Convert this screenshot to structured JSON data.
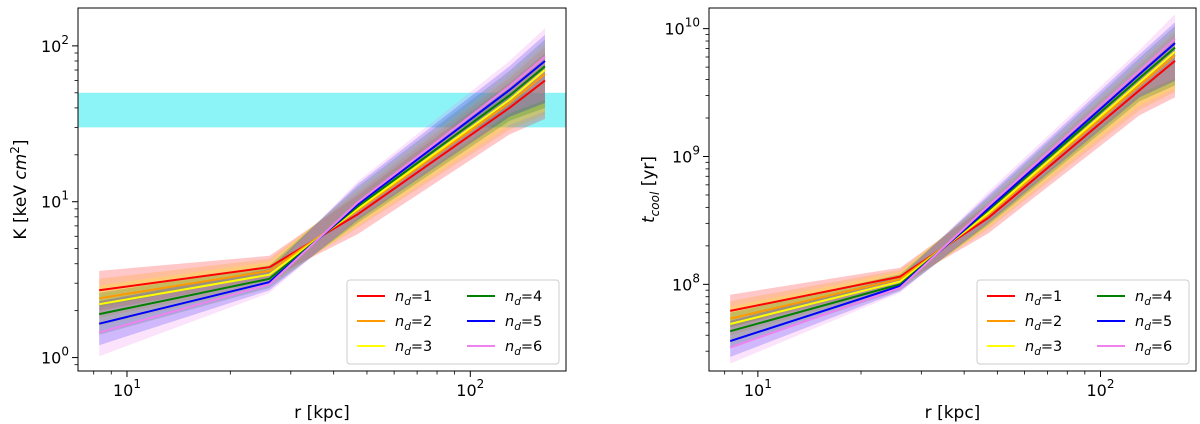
{
  "colors": {
    "nd1": "#ff0000",
    "nd2": "#ff9900",
    "nd3": "#ffff00",
    "nd4": "#008000",
    "nd5": "#0000ff",
    "nd6": "#ee82ee",
    "entropy_band": "#00e5ee"
  },
  "chart_data": [
    {
      "type": "line",
      "title": "",
      "xlabel": "r [kpc]",
      "ylabel": "K [keV cm²]",
      "ylabel_parts": {
        "main": "K [keV ",
        "italic": "cm",
        "sup": "2",
        "end": "]"
      },
      "xscale": "log",
      "yscale": "log",
      "xlim": [
        7.2,
        190
      ],
      "ylim": [
        0.82,
        175
      ],
      "xticks": [
        {
          "v": 10,
          "label": "10",
          "exp": "1"
        },
        {
          "v": 100,
          "label": "10",
          "exp": "2"
        }
      ],
      "yticks": [
        {
          "v": 1,
          "label": "10",
          "exp": "0"
        },
        {
          "v": 10,
          "label": "10",
          "exp": "1"
        },
        {
          "v": 100,
          "label": "10",
          "exp": "2"
        }
      ],
      "hband": [
        30,
        50
      ],
      "x": [
        8.3,
        26,
        47,
        130,
        165
      ],
      "series": [
        {
          "name": "n_d=1",
          "label_base": "n",
          "label_sub": "d",
          "label_val": "=1",
          "color_key": "nd1",
          "values": [
            2.7,
            3.8,
            8.3,
            40,
            60
          ],
          "lower": [
            2.0,
            3.2,
            6.2,
            27,
            34
          ],
          "upper": [
            3.6,
            4.5,
            11,
            58,
            90
          ]
        },
        {
          "name": "n_d=2",
          "label_base": "n",
          "label_sub": "d",
          "label_val": "=2",
          "color_key": "nd2",
          "values": [
            2.4,
            3.6,
            8.8,
            43,
            66
          ],
          "lower": [
            1.8,
            3.0,
            6.8,
            29,
            36
          ],
          "upper": [
            3.2,
            4.3,
            11.5,
            62,
            98
          ]
        },
        {
          "name": "n_d=3",
          "label_base": "n",
          "label_sub": "d",
          "label_val": "=3",
          "color_key": "nd3",
          "values": [
            2.2,
            3.4,
            9.0,
            45,
            70
          ],
          "lower": [
            1.6,
            2.9,
            7.0,
            31,
            38
          ],
          "upper": [
            2.9,
            4.1,
            12,
            65,
            103
          ]
        },
        {
          "name": "n_d=4",
          "label_base": "n",
          "label_sub": "d",
          "label_val": "=4",
          "color_key": "nd4",
          "values": [
            1.9,
            3.2,
            9.3,
            48,
            74
          ],
          "lower": [
            1.4,
            2.8,
            7.3,
            33,
            40
          ],
          "upper": [
            2.6,
            3.9,
            12.5,
            69,
            110
          ]
        },
        {
          "name": "n_d=5",
          "label_base": "n",
          "label_sub": "d",
          "label_val": "=5",
          "color_key": "nd5",
          "values": [
            1.65,
            3.05,
            9.6,
            52,
            80
          ],
          "lower": [
            1.2,
            2.7,
            7.6,
            35,
            43
          ],
          "upper": [
            2.3,
            3.7,
            13,
            74,
            118
          ]
        },
        {
          "name": "n_d=6",
          "label_base": "n",
          "label_sub": "d",
          "label_val": "=6",
          "color_key": "nd6",
          "values": [
            1.45,
            2.95,
            9.9,
            55,
            85
          ],
          "lower": [
            1.02,
            2.6,
            7.8,
            37,
            45
          ],
          "upper": [
            2.1,
            3.5,
            13.5,
            80,
            130
          ]
        }
      ],
      "legend": {
        "placement": "lower-right",
        "ncol": 2
      }
    },
    {
      "type": "line",
      "title": "",
      "xlabel": "r [kpc]",
      "ylabel": "t_cool [yr]",
      "ylabel_parts": {
        "main": "t",
        "sub": "cool",
        "end": " [yr]"
      },
      "xscale": "log",
      "yscale": "log",
      "xlim": [
        7.2,
        190
      ],
      "ylim": [
        21000000.0,
        14500000000.0
      ],
      "xticks": [
        {
          "v": 10,
          "label": "10",
          "exp": "1"
        },
        {
          "v": 100,
          "label": "10",
          "exp": "2"
        }
      ],
      "yticks": [
        {
          "v": 100000000.0,
          "label": "10",
          "exp": "8"
        },
        {
          "v": 1000000000.0,
          "label": "10",
          "exp": "9"
        },
        {
          "v": 10000000000.0,
          "label": "10",
          "exp": "10"
        }
      ],
      "x": [
        8.3,
        26,
        47,
        130,
        165
      ],
      "series": [
        {
          "name": "n_d=1",
          "label_base": "n",
          "label_sub": "d",
          "label_val": "=1",
          "color_key": "nd1",
          "values": [
            62000000.0,
            115000000.0,
            330000000.0,
            3300000000.0,
            5600000000.0
          ],
          "lower": [
            46000000.0,
            100000000.0,
            250000000.0,
            2100000000.0,
            2900000000.0
          ],
          "upper": [
            83000000.0,
            135000000.0,
            420000000.0,
            4800000000.0,
            8500000000.0
          ]
        },
        {
          "name": "n_d=2",
          "label_base": "n",
          "label_sub": "d",
          "label_val": "=2",
          "color_key": "nd2",
          "values": [
            54000000.0,
            110000000.0,
            350000000.0,
            3600000000.0,
            6200000000.0
          ],
          "lower": [
            40000000.0,
            95000000.0,
            270000000.0,
            2300000000.0,
            3200000000.0
          ],
          "upper": [
            74000000.0,
            130000000.0,
            440000000.0,
            5200000000.0,
            9200000000.0
          ]
        },
        {
          "name": "n_d=3",
          "label_base": "n",
          "label_sub": "d",
          "label_val": "=3",
          "color_key": "nd3",
          "values": [
            49000000.0,
            105000000.0,
            360000000.0,
            3800000000.0,
            6600000000.0
          ],
          "lower": [
            36000000.0,
            92000000.0,
            280000000.0,
            2500000000.0,
            3400000000.0
          ],
          "upper": [
            67000000.0,
            125000000.0,
            460000000.0,
            5500000000.0,
            9800000000.0
          ]
        },
        {
          "name": "n_d=4",
          "label_base": "n",
          "label_sub": "d",
          "label_val": "=4",
          "color_key": "nd4",
          "values": [
            43000000.0,
            100000000.0,
            380000000.0,
            4100000000.0,
            7100000000.0
          ],
          "lower": [
            32000000.0,
            90000000.0,
            290000000.0,
            2700000000.0,
            3600000000.0
          ],
          "upper": [
            60000000.0,
            120000000.0,
            480000000.0,
            5900000000.0,
            10500000000.0
          ]
        },
        {
          "name": "n_d=5",
          "label_base": "n",
          "label_sub": "d",
          "label_val": "=5",
          "color_key": "nd5",
          "values": [
            36000000.0,
            97000000.0,
            390000000.0,
            4400000000.0,
            7700000000.0
          ],
          "lower": [
            27000000.0,
            88000000.0,
            300000000.0,
            2900000000.0,
            3900000000.0
          ],
          "upper": [
            52000000.0,
            115000000.0,
            500000000.0,
            6300000000.0,
            11200000000.0
          ]
        },
        {
          "name": "n_d=6",
          "label_base": "n",
          "label_sub": "d",
          "label_val": "=6",
          "color_key": "nd6",
          "values": [
            32000000.0,
            94000000.0,
            410000000.0,
            4700000000.0,
            8300000000.0
          ],
          "lower": [
            24000000.0,
            86000000.0,
            310000000.0,
            3100000000.0,
            4100000000.0
          ],
          "upper": [
            46000000.0,
            110000000.0,
            530000000.0,
            6800000000.0,
            13000000000.0
          ]
        }
      ],
      "legend": {
        "placement": "lower-right",
        "ncol": 2
      }
    }
  ]
}
